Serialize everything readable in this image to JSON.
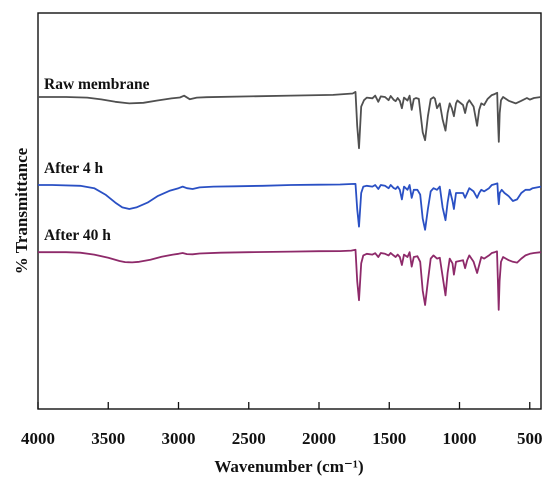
{
  "chart_data": {
    "type": "line",
    "xlabel": "Wavenumber (cm⁻¹)",
    "ylabel": "% Transmittance",
    "xlim": [
      4000,
      420
    ],
    "x_reversed": true,
    "y_ticks_shown": false,
    "grid": false,
    "xticks": [
      4000,
      3500,
      3000,
      2500,
      2000,
      1500,
      1000,
      500
    ],
    "xtick_labels": [
      "4000",
      "3500",
      "3000",
      "2500",
      "2000",
      "1500",
      "1000",
      "500"
    ],
    "series": [
      {
        "name": "Raw membrane",
        "color": "#505050",
        "baseline": 0.0,
        "points": [
          [
            4000,
            0
          ],
          [
            3800,
            0
          ],
          [
            3650,
            0.4
          ],
          [
            3550,
            1.5
          ],
          [
            3450,
            3
          ],
          [
            3350,
            4
          ],
          [
            3250,
            3.6
          ],
          [
            3150,
            2.2
          ],
          [
            3050,
            0.9
          ],
          [
            2990,
            0.3
          ],
          [
            2960,
            -0.8
          ],
          [
            2920,
            1.4
          ],
          [
            2870,
            0.4
          ],
          [
            2800,
            0.1
          ],
          [
            2500,
            -0.4
          ],
          [
            2200,
            -0.9
          ],
          [
            1900,
            -1.3
          ],
          [
            1760,
            -2.2
          ],
          [
            1740,
            -3.2
          ],
          [
            1728,
            18
          ],
          [
            1715,
            32
          ],
          [
            1700,
            6
          ],
          [
            1680,
            2
          ],
          [
            1660,
            0.4
          ],
          [
            1620,
            0.8
          ],
          [
            1600,
            -0.9
          ],
          [
            1578,
            3
          ],
          [
            1560,
            -0.4
          ],
          [
            1530,
            0
          ],
          [
            1505,
            2
          ],
          [
            1490,
            -0.6
          ],
          [
            1470,
            1.6
          ],
          [
            1455,
            2.6
          ],
          [
            1440,
            0.6
          ],
          [
            1425,
            2.4
          ],
          [
            1410,
            7
          ],
          [
            1395,
            0.4
          ],
          [
            1370,
            2.2
          ],
          [
            1355,
            -0.8
          ],
          [
            1340,
            8
          ],
          [
            1325,
            1.3
          ],
          [
            1310,
            0.6
          ],
          [
            1290,
            1.2
          ],
          [
            1262,
            22
          ],
          [
            1245,
            27
          ],
          [
            1225,
            12
          ],
          [
            1205,
            1.3
          ],
          [
            1185,
            0.1
          ],
          [
            1175,
            1
          ],
          [
            1160,
            7
          ],
          [
            1140,
            4
          ],
          [
            1120,
            14
          ],
          [
            1100,
            21
          ],
          [
            1085,
            10
          ],
          [
            1070,
            4
          ],
          [
            1055,
            7
          ],
          [
            1040,
            12
          ],
          [
            1025,
            4
          ],
          [
            1015,
            2.2
          ],
          [
            975,
            5
          ],
          [
            960,
            10
          ],
          [
            945,
            4
          ],
          [
            930,
            2
          ],
          [
            900,
            6
          ],
          [
            875,
            18
          ],
          [
            860,
            8
          ],
          [
            845,
            4
          ],
          [
            825,
            5
          ],
          [
            800,
            1.2
          ],
          [
            770,
            -1.2
          ],
          [
            750,
            -1.8
          ],
          [
            732,
            -2.6
          ],
          [
            726,
            15
          ],
          [
            720,
            28
          ],
          [
            714,
            10
          ],
          [
            705,
            2
          ],
          [
            690,
            0
          ],
          [
            650,
            2.4
          ],
          [
            600,
            4
          ],
          [
            560,
            2.4
          ],
          [
            520,
            0.6
          ],
          [
            500,
            1.6
          ],
          [
            470,
            0.6
          ],
          [
            420,
            0
          ]
        ]
      },
      {
        "name": "After 4 h",
        "color": "#2a50c4",
        "baseline": 55.0,
        "points": [
          [
            4000,
            55
          ],
          [
            3900,
            55
          ],
          [
            3700,
            55.5
          ],
          [
            3600,
            57
          ],
          [
            3520,
            61
          ],
          [
            3450,
            66
          ],
          [
            3400,
            69
          ],
          [
            3350,
            70
          ],
          [
            3300,
            69
          ],
          [
            3220,
            66
          ],
          [
            3150,
            62
          ],
          [
            3060,
            58.5
          ],
          [
            3000,
            57
          ],
          [
            2970,
            56
          ],
          [
            2940,
            57
          ],
          [
            2900,
            57.5
          ],
          [
            2850,
            56.5
          ],
          [
            2750,
            56
          ],
          [
            2600,
            55.8
          ],
          [
            2400,
            55.5
          ],
          [
            2200,
            55
          ],
          [
            2000,
            54.8
          ],
          [
            1850,
            54.7
          ],
          [
            1770,
            54.4
          ],
          [
            1740,
            54.3
          ],
          [
            1728,
            70
          ],
          [
            1715,
            81
          ],
          [
            1700,
            60
          ],
          [
            1685,
            56
          ],
          [
            1660,
            55.5
          ],
          [
            1620,
            56
          ],
          [
            1600,
            55
          ],
          [
            1578,
            57.5
          ],
          [
            1560,
            55
          ],
          [
            1530,
            55.5
          ],
          [
            1505,
            57
          ],
          [
            1490,
            55
          ],
          [
            1470,
            56.8
          ],
          [
            1455,
            57.5
          ],
          [
            1440,
            56
          ],
          [
            1425,
            58
          ],
          [
            1410,
            64
          ],
          [
            1395,
            56
          ],
          [
            1370,
            58
          ],
          [
            1355,
            55
          ],
          [
            1340,
            63
          ],
          [
            1325,
            58
          ],
          [
            1300,
            58
          ],
          [
            1280,
            61
          ],
          [
            1262,
            76
          ],
          [
            1245,
            83
          ],
          [
            1225,
            70
          ],
          [
            1205,
            59
          ],
          [
            1185,
            57
          ],
          [
            1160,
            58
          ],
          [
            1140,
            56
          ],
          [
            1120,
            69
          ],
          [
            1100,
            77
          ],
          [
            1085,
            66
          ],
          [
            1070,
            58
          ],
          [
            1050,
            65
          ],
          [
            1040,
            70
          ],
          [
            1025,
            60
          ],
          [
            975,
            60
          ],
          [
            960,
            63
          ],
          [
            945,
            60
          ],
          [
            930,
            57
          ],
          [
            900,
            59
          ],
          [
            875,
            63
          ],
          [
            860,
            60
          ],
          [
            845,
            58
          ],
          [
            825,
            59
          ],
          [
            790,
            57
          ],
          [
            770,
            55
          ],
          [
            750,
            54.5
          ],
          [
            730,
            54
          ],
          [
            725,
            62
          ],
          [
            720,
            67
          ],
          [
            714,
            60
          ],
          [
            700,
            58
          ],
          [
            680,
            60
          ],
          [
            650,
            62
          ],
          [
            620,
            65
          ],
          [
            590,
            64
          ],
          [
            560,
            60
          ],
          [
            530,
            58
          ],
          [
            500,
            58
          ],
          [
            480,
            57
          ],
          [
            420,
            56
          ]
        ]
      },
      {
        "name": "After 40 h",
        "color": "#8e2a6a",
        "baseline": 97.0,
        "points": [
          [
            4000,
            97
          ],
          [
            3800,
            97
          ],
          [
            3700,
            97.3
          ],
          [
            3600,
            98.5
          ],
          [
            3500,
            100.5
          ],
          [
            3420,
            102.5
          ],
          [
            3380,
            103.2
          ],
          [
            3330,
            103.4
          ],
          [
            3280,
            103
          ],
          [
            3200,
            101.7
          ],
          [
            3120,
            99.8
          ],
          [
            3040,
            98.5
          ],
          [
            3000,
            98
          ],
          [
            2970,
            97.5
          ],
          [
            2940,
            98.2
          ],
          [
            2900,
            98.3
          ],
          [
            2850,
            97.8
          ],
          [
            2700,
            97.3
          ],
          [
            2500,
            97
          ],
          [
            2200,
            96.6
          ],
          [
            2000,
            96.4
          ],
          [
            1850,
            96.3
          ],
          [
            1770,
            96
          ],
          [
            1740,
            95.5
          ],
          [
            1728,
            115
          ],
          [
            1715,
            127
          ],
          [
            1700,
            104
          ],
          [
            1685,
            99
          ],
          [
            1660,
            98
          ],
          [
            1620,
            98.5
          ],
          [
            1600,
            97.6
          ],
          [
            1578,
            100
          ],
          [
            1560,
            97.5
          ],
          [
            1530,
            98
          ],
          [
            1505,
            99
          ],
          [
            1490,
            97.5
          ],
          [
            1470,
            99
          ],
          [
            1455,
            100
          ],
          [
            1440,
            98.5
          ],
          [
            1425,
            100
          ],
          [
            1410,
            105
          ],
          [
            1395,
            98.5
          ],
          [
            1370,
            100
          ],
          [
            1355,
            97
          ],
          [
            1340,
            106
          ],
          [
            1325,
            100
          ],
          [
            1300,
            99.5
          ],
          [
            1280,
            103
          ],
          [
            1262,
            121
          ],
          [
            1245,
            130
          ],
          [
            1225,
            115
          ],
          [
            1205,
            101
          ],
          [
            1185,
            99
          ],
          [
            1160,
            101
          ],
          [
            1140,
            100.5
          ],
          [
            1120,
            112
          ],
          [
            1100,
            124
          ],
          [
            1085,
            110
          ],
          [
            1070,
            101
          ],
          [
            1050,
            104
          ],
          [
            1040,
            111
          ],
          [
            1025,
            103
          ],
          [
            975,
            102
          ],
          [
            960,
            107
          ],
          [
            945,
            102
          ],
          [
            930,
            99
          ],
          [
            900,
            103
          ],
          [
            875,
            110
          ],
          [
            860,
            105
          ],
          [
            845,
            100
          ],
          [
            825,
            101
          ],
          [
            790,
            99
          ],
          [
            770,
            97.5
          ],
          [
            750,
            97
          ],
          [
            733,
            96.5
          ],
          [
            727,
            115
          ],
          [
            721,
            133
          ],
          [
            715,
            115
          ],
          [
            705,
            103
          ],
          [
            690,
            100
          ],
          [
            650,
            102
          ],
          [
            620,
            103
          ],
          [
            590,
            103.5
          ],
          [
            560,
            101
          ],
          [
            530,
            99
          ],
          [
            500,
            98
          ],
          [
            470,
            97.5
          ],
          [
            420,
            97
          ]
        ]
      }
    ]
  }
}
